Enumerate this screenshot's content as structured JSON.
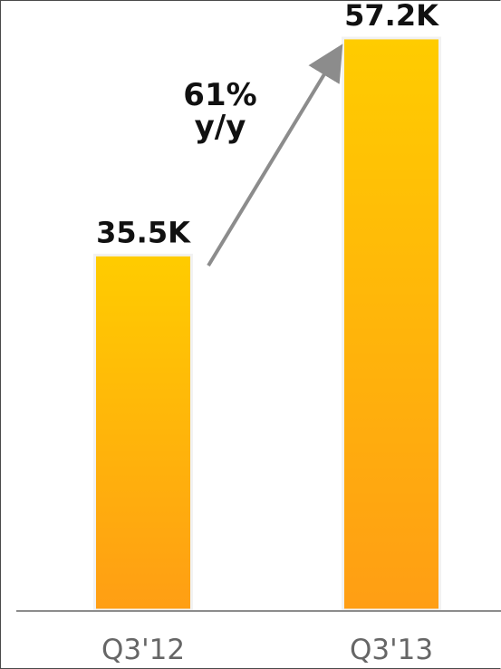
{
  "chart_data": {
    "type": "bar",
    "categories": [
      "Q3'12",
      "Q3'13"
    ],
    "values": [
      35.5,
      57.2
    ],
    "value_labels": [
      "35.5K",
      "57.2K"
    ],
    "unit": "K",
    "title": "",
    "xlabel": "",
    "ylabel": "",
    "ylim": [
      0,
      61
    ],
    "grid": false,
    "legend": "none",
    "annotation": {
      "line1": "61%",
      "line2": "y/y"
    },
    "colors": {
      "bar_top": "#FFCC00",
      "bar_bottom": "#FF9E14",
      "arrow": "#8c8c8c",
      "axis": "#8c8c8c"
    }
  }
}
